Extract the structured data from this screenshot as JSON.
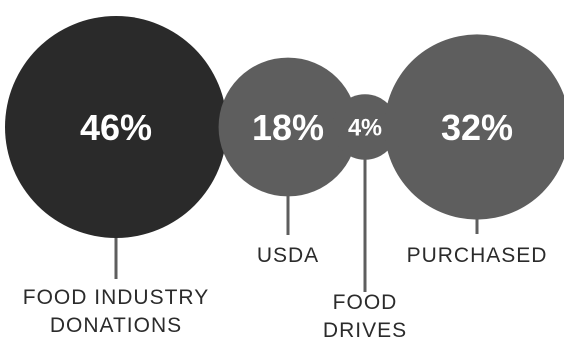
{
  "chart_data": {
    "type": "bubble",
    "categories": [
      "FOOD INDUSTRY DONATIONS",
      "USDA",
      "FOOD DRIVES",
      "PURCHASED"
    ],
    "values": [
      46,
      18,
      4,
      32
    ],
    "value_labels": [
      "46%",
      "18%",
      "4%",
      "32%"
    ],
    "category_lines": [
      [
        "FOOD INDUSTRY",
        "DONATIONS"
      ],
      [
        "USDA"
      ],
      [
        "FOOD",
        "DRIVES"
      ],
      [
        "PURCHASED"
      ]
    ],
    "colors": [
      "#2a2a2a",
      "#5e5e5e",
      "#5e5e5e",
      "#5e5e5e"
    ],
    "connector_color": "#5e5e5e",
    "title": "",
    "legend": "none",
    "grid": false
  }
}
